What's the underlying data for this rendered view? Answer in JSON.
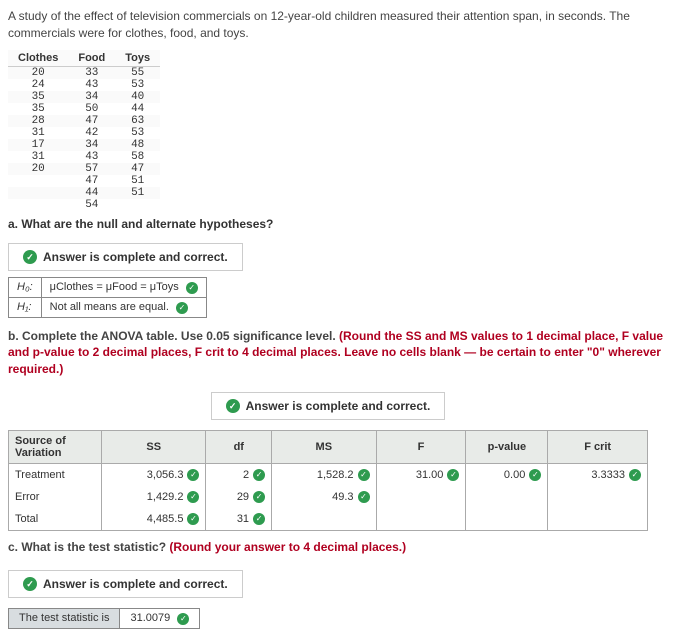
{
  "intro": "A study of the effect of television commercials on 12-year-old children measured their attention span, in seconds. The commercials were for clothes, food, and toys.",
  "data_table": {
    "columns": [
      "Clothes",
      "Food",
      "Toys"
    ],
    "rows": [
      [
        "20",
        "33",
        "55"
      ],
      [
        "24",
        "43",
        "53"
      ],
      [
        "35",
        "34",
        "40"
      ],
      [
        "35",
        "50",
        "44"
      ],
      [
        "28",
        "47",
        "63"
      ],
      [
        "31",
        "42",
        "53"
      ],
      [
        "17",
        "34",
        "48"
      ],
      [
        "31",
        "43",
        "58"
      ],
      [
        "20",
        "57",
        "47"
      ],
      [
        "",
        "47",
        "51"
      ],
      [
        "",
        "44",
        "51"
      ],
      [
        "",
        "54",
        ""
      ]
    ]
  },
  "qa": "a. What are the null and alternate hypotheses?",
  "banner": "Answer is complete and correct.",
  "hyp": {
    "h0_label": "H₀:",
    "h0_value": "μClothes = μFood = μToys",
    "h1_label": "H₁:",
    "h1_value": "Not all means are equal."
  },
  "qb_prefix": "b. Complete the ANOVA table. Use 0.05 significance level. ",
  "qb_red": "(Round the SS and MS values to 1 decimal place, F value and p-value to 2 decimal places, F crit to 4 decimal places. Leave no cells blank — be certain to enter \"0\" wherever required.)",
  "anova": {
    "headers": [
      "Source of Variation",
      "SS",
      "df",
      "MS",
      "F",
      "p-value",
      "F crit"
    ],
    "rows": [
      {
        "label": "Treatment",
        "ss": "3,056.3",
        "df": "2",
        "ms": "1,528.2",
        "f": "31.00",
        "p": "0.00",
        "fcrit": "3.3333"
      },
      {
        "label": "Error",
        "ss": "1,429.2",
        "df": "29",
        "ms": "49.3",
        "f": "",
        "p": "",
        "fcrit": ""
      },
      {
        "label": "Total",
        "ss": "4,485.5",
        "df": "31",
        "ms": "",
        "f": "",
        "p": "",
        "fcrit": ""
      }
    ]
  },
  "qc_prefix": "c. What is the test statistic? ",
  "qc_red": "(Round your answer to 4 decimal places.)",
  "stat": {
    "label": "The test statistic is",
    "value": "31.0079"
  }
}
